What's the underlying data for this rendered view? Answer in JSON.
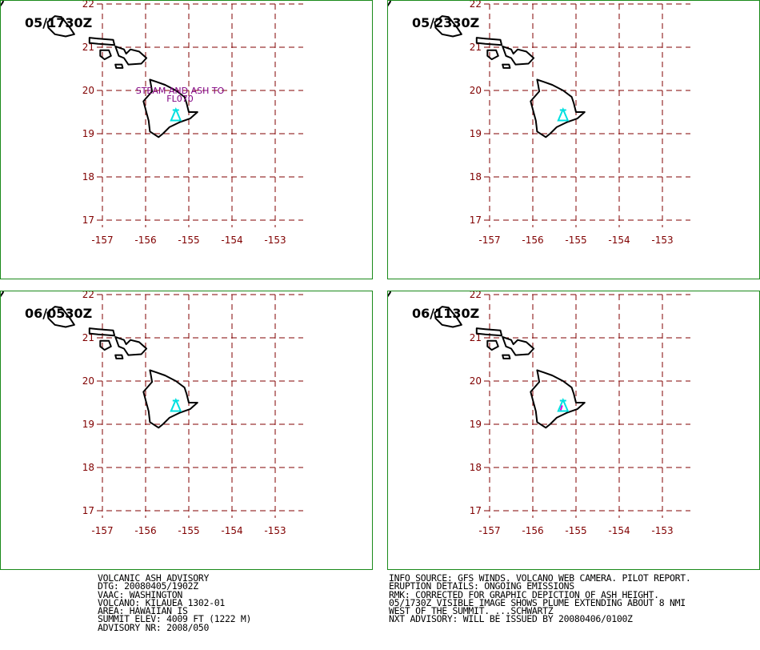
{
  "panels": [
    {
      "title": "05/1730Z",
      "annotation": [
        "STEAM AND ASH TO",
        "FL070"
      ],
      "mark_color": "#00e0e0"
    },
    {
      "title": "05/2330Z",
      "annotation": [],
      "mark_color": "#00e0e0"
    },
    {
      "title": "06/0530Z",
      "annotation": [],
      "mark_color": "#00e0e0"
    },
    {
      "title": "06/1130Z",
      "annotation": [],
      "mark_color": "#00e0e0",
      "accent_color": "#e000e0"
    }
  ],
  "axes": {
    "lat_labels": [
      "22",
      "21",
      "20",
      "19",
      "18",
      "17"
    ],
    "lon_labels": [
      "-157",
      "-156",
      "-155",
      "-154",
      "-153"
    ],
    "lat_range": [
      17,
      22
    ],
    "lon_range": [
      -157,
      -153
    ],
    "grid_color": "#800000"
  },
  "advisory_left": [
    "VOLCANIC ASH ADVISORY",
    "DTG: 20080405/1902Z",
    "VAAC: WASHINGTON",
    "VOLCANO: KILAUEA 1302-01",
    "AREA: HAWAIIAN IS",
    "SUMMIT ELEV: 4009 FT (1222 M)",
    "ADVISORY NR: 2008/050"
  ],
  "advisory_right": [
    "INFO SOURCE: GFS WINDS. VOLCANO WEB CAMERA. PILOT REPORT.",
    "ERUPTION DETAILS: ONGOING EMISSIONS",
    "RMK: CORRECTED FOR GRAPHIC DEPICTION OF ASH HEIGHT.",
    "05/1730Z VISIBLE IMAGE SHOWS PLUME EXTENDING ABOUT 8 NMI",
    "WEST OF THE SUMMIT. ...SCHWARTZ",
    "NXT ADVISORY: WILL BE ISSUED BY 20080406/0100Z"
  ],
  "colors": {
    "panel_border": "#1a8a1a",
    "coast": "#000000",
    "grid": "#800000",
    "annotation": "#800080"
  }
}
